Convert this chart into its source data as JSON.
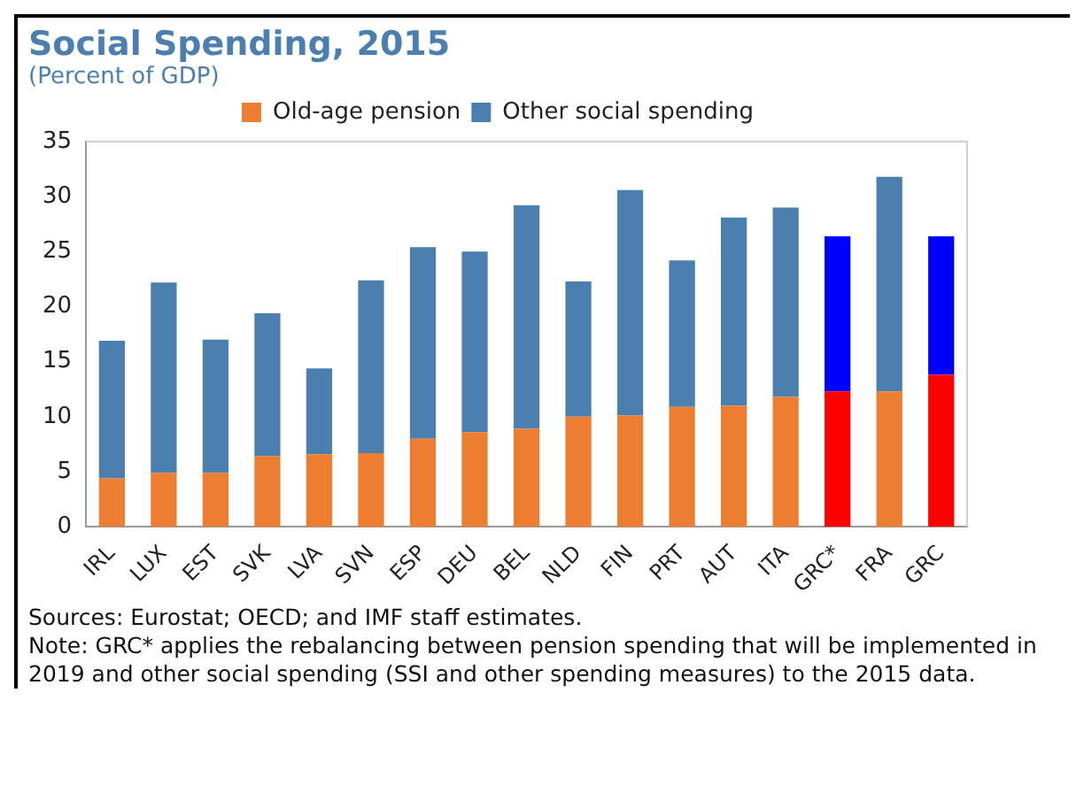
{
  "chart_data": {
    "type": "bar",
    "title": "Social Spending, 2015",
    "subtitle": "(Percent of GDP)",
    "categories": [
      "IRL",
      "LUX",
      "EST",
      "SVK",
      "LVA",
      "SVN",
      "ESP",
      "DEU",
      "BEL",
      "NLD",
      "FIN",
      "PRT",
      "AUT",
      "ITA",
      "GRC*",
      "FRA",
      "GRC"
    ],
    "stacked": true,
    "series": [
      {
        "name": "Old-age pension",
        "color": "#ed7d31",
        "colors": [
          "#ed7d31",
          "#ed7d31",
          "#ed7d31",
          "#ed7d31",
          "#ed7d31",
          "#ed7d31",
          "#ed7d31",
          "#ed7d31",
          "#ed7d31",
          "#ed7d31",
          "#ed7d31",
          "#ed7d31",
          "#ed7d31",
          "#ed7d31",
          "#ff0000",
          "#ed7d31",
          "#ff0000"
        ],
        "values": [
          4.4,
          4.9,
          4.9,
          6.4,
          6.6,
          6.7,
          8.0,
          8.6,
          8.9,
          10.0,
          10.1,
          10.9,
          11.0,
          11.8,
          12.3,
          12.3,
          13.8
        ]
      },
      {
        "name": "Other social spending",
        "color": "#4a7fb0",
        "colors": [
          "#4a7fb0",
          "#4a7fb0",
          "#4a7fb0",
          "#4a7fb0",
          "#4a7fb0",
          "#4a7fb0",
          "#4a7fb0",
          "#4a7fb0",
          "#4a7fb0",
          "#4a7fb0",
          "#4a7fb0",
          "#4a7fb0",
          "#4a7fb0",
          "#4a7fb0",
          "#0000ff",
          "#4a7fb0",
          "#0000ff"
        ],
        "values": [
          12.5,
          17.3,
          12.1,
          13.0,
          7.8,
          15.7,
          17.4,
          16.4,
          20.3,
          12.3,
          20.5,
          13.3,
          17.1,
          17.2,
          14.1,
          19.5,
          12.6
        ]
      }
    ],
    "ylim": [
      0,
      35
    ],
    "yticks": [
      0,
      5,
      10,
      15,
      20,
      25,
      30,
      35
    ],
    "grid": false,
    "legend": "top",
    "annotations": [
      "Sources: Eurostat; OECD; and IMF staff estimates.",
      "Note: GRC* applies the rebalancing between pension spending that will be implemented in 2019 and other social spending (SSI and other spending measures) to the 2015 data."
    ]
  }
}
